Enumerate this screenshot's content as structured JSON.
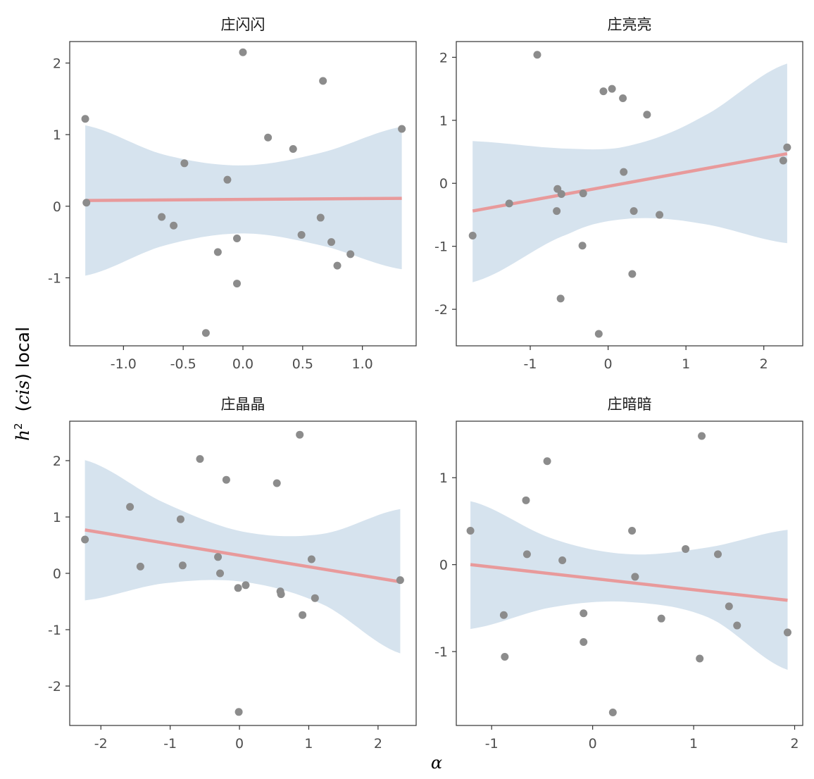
{
  "axis_labels": {
    "y_prefix": "h",
    "y_sup": "2",
    "y_cis": "cis",
    "y_suffix": "local",
    "x": "α"
  },
  "colors": {
    "points": "#8c8c8c",
    "fit_line": "#e89a9b",
    "ribbon": "#d6e3ee",
    "panel_border": "#333333",
    "tick_text": "#4d4d4d"
  },
  "chart_data": [
    {
      "type": "scatter",
      "title": "庄闪闪",
      "xlim": [
        -1.45,
        1.45
      ],
      "ylim": [
        -1.95,
        2.3
      ],
      "xticks": [
        -1.0,
        -0.5,
        0.0,
        0.5,
        1.0
      ],
      "xtick_labels": [
        "-1.0",
        "-0.5",
        "0.0",
        "0.5",
        "1.0"
      ],
      "yticks": [
        -1,
        0,
        1,
        2
      ],
      "ytick_labels": [
        "-1",
        "0",
        "1",
        "2"
      ],
      "points": [
        {
          "x": -1.32,
          "y": 1.22
        },
        {
          "x": -1.31,
          "y": 0.05
        },
        {
          "x": -0.68,
          "y": -0.15
        },
        {
          "x": -0.58,
          "y": -0.27
        },
        {
          "x": -0.49,
          "y": 0.6
        },
        {
          "x": -0.31,
          "y": -1.77
        },
        {
          "x": -0.21,
          "y": -0.64
        },
        {
          "x": -0.13,
          "y": 0.37
        },
        {
          "x": -0.05,
          "y": -0.45
        },
        {
          "x": -0.05,
          "y": -1.08
        },
        {
          "x": 0.0,
          "y": 2.15
        },
        {
          "x": 0.21,
          "y": 0.96
        },
        {
          "x": 0.42,
          "y": 0.8
        },
        {
          "x": 0.49,
          "y": -0.4
        },
        {
          "x": 0.65,
          "y": -0.16
        },
        {
          "x": 0.67,
          "y": 1.75
        },
        {
          "x": 0.74,
          "y": -0.5
        },
        {
          "x": 0.79,
          "y": -0.83
        },
        {
          "x": 0.9,
          "y": -0.67
        },
        {
          "x": 1.33,
          "y": 1.08
        }
      ],
      "fit": {
        "x": [
          -1.32,
          1.33
        ],
        "y": [
          0.08,
          0.11
        ]
      },
      "band": {
        "x": [
          -1.32,
          -0.66,
          0.0,
          0.66,
          1.33
        ],
        "lower": [
          -0.97,
          -0.55,
          -0.38,
          -0.55,
          -0.88
        ],
        "upper": [
          1.13,
          0.72,
          0.57,
          0.75,
          1.11
        ]
      }
    },
    {
      "type": "scatter",
      "title": "庄亮亮",
      "xlim": [
        -1.95,
        2.5
      ],
      "ylim": [
        -2.58,
        2.25
      ],
      "xticks": [
        -1,
        0,
        1,
        2
      ],
      "xtick_labels": [
        "-1",
        "0",
        "1",
        "2"
      ],
      "yticks": [
        -2,
        -1,
        0,
        1,
        2
      ],
      "ytick_labels": [
        "-2",
        "-1",
        "0",
        "1",
        "2"
      ],
      "points": [
        {
          "x": -1.74,
          "y": -0.83
        },
        {
          "x": -1.27,
          "y": -0.32
        },
        {
          "x": -0.91,
          "y": 2.04
        },
        {
          "x": -0.66,
          "y": -0.44
        },
        {
          "x": -0.65,
          "y": -0.09
        },
        {
          "x": -0.61,
          "y": -1.83
        },
        {
          "x": -0.6,
          "y": -0.17
        },
        {
          "x": -0.33,
          "y": -0.99
        },
        {
          "x": -0.32,
          "y": -0.16
        },
        {
          "x": -0.12,
          "y": -2.39
        },
        {
          "x": -0.06,
          "y": 1.46
        },
        {
          "x": 0.05,
          "y": 1.5
        },
        {
          "x": 0.19,
          "y": 1.35
        },
        {
          "x": 0.2,
          "y": 0.18
        },
        {
          "x": 0.31,
          "y": -1.44
        },
        {
          "x": 0.33,
          "y": -0.44
        },
        {
          "x": 0.5,
          "y": 1.09
        },
        {
          "x": 0.66,
          "y": -0.5
        },
        {
          "x": 2.25,
          "y": 0.36
        },
        {
          "x": 2.3,
          "y": 0.57
        }
      ],
      "fit": {
        "x": [
          -1.74,
          2.3
        ],
        "y": [
          -0.44,
          0.47
        ]
      },
      "band": {
        "x": [
          -1.74,
          -0.5,
          0.28,
          1.2,
          2.3
        ],
        "lower": [
          -1.57,
          -0.8,
          -0.56,
          -0.64,
          -0.95
        ],
        "upper": [
          0.67,
          0.55,
          0.6,
          1.05,
          1.9
        ]
      }
    },
    {
      "type": "scatter",
      "title": "庄晶晶",
      "xlim": [
        -2.45,
        2.55
      ],
      "ylim": [
        -2.7,
        2.7
      ],
      "xticks": [
        -2,
        -1,
        0,
        1,
        2
      ],
      "xtick_labels": [
        "-2",
        "-1",
        "0",
        "1",
        "2"
      ],
      "yticks": [
        -2,
        -1,
        0,
        1,
        2
      ],
      "ytick_labels": [
        "-2",
        "-1",
        "0",
        "1",
        "2"
      ],
      "points": [
        {
          "x": -2.23,
          "y": 0.6
        },
        {
          "x": -1.58,
          "y": 1.18
        },
        {
          "x": -1.43,
          "y": 0.12
        },
        {
          "x": -0.85,
          "y": 0.96
        },
        {
          "x": -0.82,
          "y": 0.14
        },
        {
          "x": -0.57,
          "y": 2.03
        },
        {
          "x": -0.31,
          "y": 0.29
        },
        {
          "x": -0.28,
          "y": 0.0
        },
        {
          "x": -0.19,
          "y": 1.66
        },
        {
          "x": -0.02,
          "y": -0.26
        },
        {
          "x": -0.01,
          "y": -2.46
        },
        {
          "x": 0.09,
          "y": -0.21
        },
        {
          "x": 0.54,
          "y": 1.6
        },
        {
          "x": 0.59,
          "y": -0.32
        },
        {
          "x": 0.6,
          "y": -0.37
        },
        {
          "x": 0.87,
          "y": 2.46
        },
        {
          "x": 0.91,
          "y": -0.74
        },
        {
          "x": 1.04,
          "y": 0.25
        },
        {
          "x": 1.09,
          "y": -0.44
        },
        {
          "x": 2.32,
          "y": -0.12
        }
      ],
      "fit": {
        "x": [
          -2.23,
          2.32
        ],
        "y": [
          0.77,
          -0.15
        ]
      },
      "band": {
        "x": [
          -2.23,
          -1.1,
          0.05,
          1.2,
          2.32
        ],
        "lower": [
          -0.48,
          -0.18,
          -0.15,
          -0.55,
          -1.42
        ],
        "upper": [
          2.01,
          1.26,
          0.74,
          0.7,
          1.14
        ]
      }
    },
    {
      "type": "scatter",
      "title": "庄暗暗",
      "xlim": [
        -1.35,
        2.08
      ],
      "ylim": [
        -1.85,
        1.65
      ],
      "xticks": [
        -1,
        0,
        1,
        2
      ],
      "xtick_labels": [
        "-1",
        "0",
        "1",
        "2"
      ],
      "yticks": [
        -1,
        0,
        1
      ],
      "ytick_labels": [
        "-1",
        "0",
        "1"
      ],
      "points": [
        {
          "x": -1.21,
          "y": 0.39
        },
        {
          "x": -0.88,
          "y": -0.58
        },
        {
          "x": -0.87,
          "y": -1.06
        },
        {
          "x": -0.66,
          "y": 0.74
        },
        {
          "x": -0.65,
          "y": 0.12
        },
        {
          "x": -0.45,
          "y": 1.19
        },
        {
          "x": -0.3,
          "y": 0.05
        },
        {
          "x": -0.09,
          "y": -0.56
        },
        {
          "x": -0.09,
          "y": -0.89
        },
        {
          "x": 0.2,
          "y": -1.7
        },
        {
          "x": 0.39,
          "y": 0.39
        },
        {
          "x": 0.42,
          "y": -0.14
        },
        {
          "x": 0.68,
          "y": -0.62
        },
        {
          "x": 0.92,
          "y": 0.18
        },
        {
          "x": 1.06,
          "y": -1.08
        },
        {
          "x": 1.08,
          "y": 1.48
        },
        {
          "x": 1.24,
          "y": 0.12
        },
        {
          "x": 1.35,
          "y": -0.48
        },
        {
          "x": 1.43,
          "y": -0.7
        },
        {
          "x": 1.93,
          "y": -0.78
        }
      ],
      "fit": {
        "x": [
          -1.21,
          1.93
        ],
        "y": [
          0.0,
          -0.41
        ]
      },
      "band": {
        "x": [
          -1.21,
          -0.4,
          0.36,
          1.15,
          1.93
        ],
        "lower": [
          -0.74,
          -0.49,
          -0.43,
          -0.61,
          -1.21
        ],
        "upper": [
          0.73,
          0.3,
          0.12,
          0.2,
          0.4
        ]
      }
    }
  ]
}
